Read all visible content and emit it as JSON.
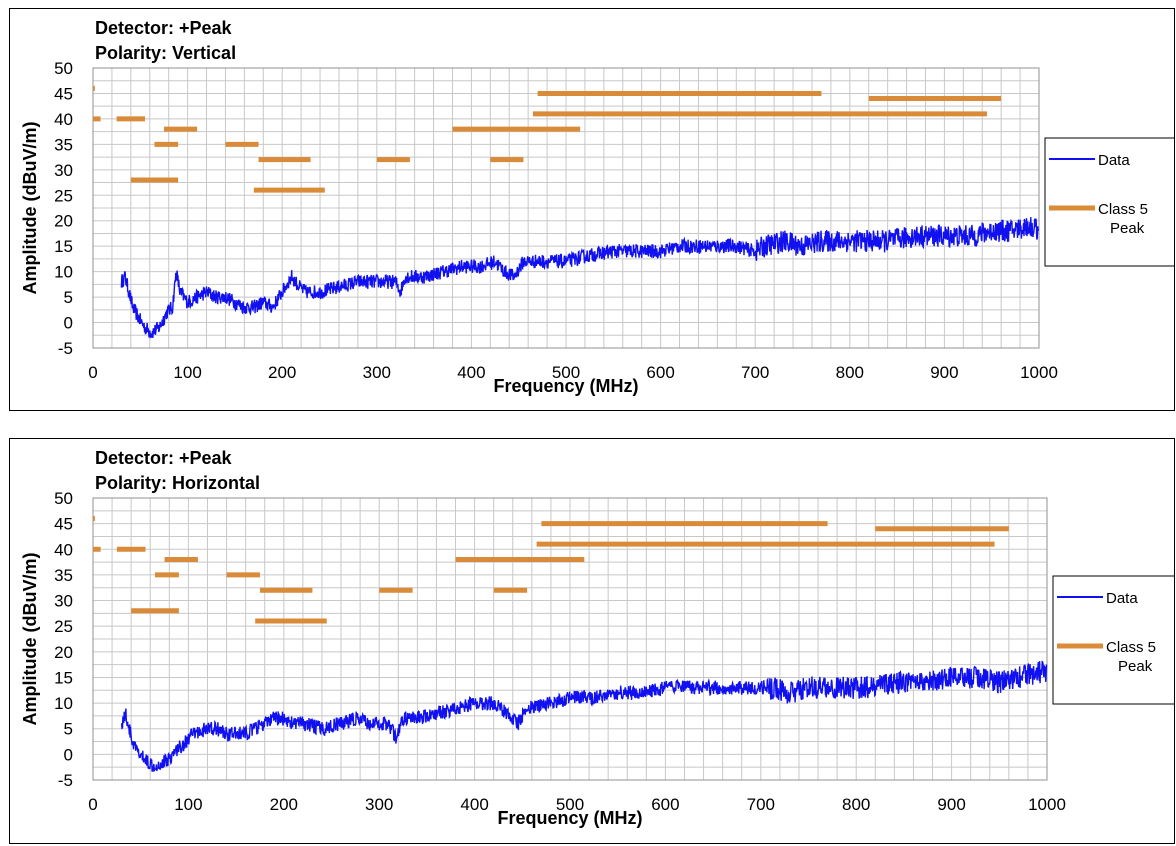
{
  "colors": {
    "data": "#1010f0",
    "limit": "#d98b3a",
    "grid": "#c8c8c8",
    "frame": "#000000"
  },
  "chart_data": [
    {
      "type": "line",
      "title": [
        "Detector: +Peak",
        "Polarity: Vertical"
      ],
      "xlabel": "Frequency (MHz)",
      "ylabel": "Amplitude (dBuV/m)",
      "xlim": [
        0,
        1000
      ],
      "ylim": [
        -5,
        50
      ],
      "x_ticks": [
        "0",
        "100",
        "200",
        "300",
        "400",
        "500",
        "600",
        "700",
        "800",
        "900",
        "1000"
      ],
      "y_ticks": [
        "-5",
        "0",
        "5",
        "10",
        "15",
        "20",
        "25",
        "30",
        "35",
        "40",
        "45",
        "50"
      ],
      "grid": true,
      "legend_position": "right",
      "series": [
        {
          "name": "Data",
          "color": "#1010f0",
          "points": [
            [
              30,
              8
            ],
            [
              34,
              9
            ],
            [
              38,
              6
            ],
            [
              42,
              3
            ],
            [
              48,
              1
            ],
            [
              55,
              -1
            ],
            [
              62,
              -2
            ],
            [
              70,
              -1
            ],
            [
              78,
              2
            ],
            [
              84,
              3
            ],
            [
              88,
              10
            ],
            [
              92,
              6
            ],
            [
              100,
              4
            ],
            [
              110,
              5
            ],
            [
              120,
              6
            ],
            [
              130,
              5
            ],
            [
              140,
              5
            ],
            [
              150,
              4
            ],
            [
              160,
              3
            ],
            [
              170,
              3
            ],
            [
              180,
              4
            ],
            [
              190,
              3
            ],
            [
              200,
              6
            ],
            [
              210,
              9
            ],
            [
              218,
              7
            ],
            [
              225,
              6
            ],
            [
              240,
              6
            ],
            [
              260,
              7
            ],
            [
              280,
              8
            ],
            [
              300,
              8
            ],
            [
              310,
              8
            ],
            [
              320,
              8
            ],
            [
              325,
              6
            ],
            [
              330,
              9
            ],
            [
              350,
              9
            ],
            [
              370,
              10
            ],
            [
              390,
              11
            ],
            [
              410,
              11
            ],
            [
              425,
              12
            ],
            [
              435,
              10
            ],
            [
              445,
              9
            ],
            [
              455,
              12
            ],
            [
              480,
              12
            ],
            [
              500,
              12
            ],
            [
              520,
              13
            ],
            [
              550,
              14
            ],
            [
              580,
              14
            ],
            [
              600,
              14
            ],
            [
              620,
              15
            ],
            [
              650,
              15
            ],
            [
              680,
              15
            ],
            [
              700,
              14
            ],
            [
              710,
              15
            ],
            [
              730,
              16
            ],
            [
              750,
              15
            ],
            [
              770,
              16
            ],
            [
              790,
              16
            ],
            [
              810,
              16
            ],
            [
              840,
              16
            ],
            [
              870,
              17
            ],
            [
              900,
              17
            ],
            [
              930,
              17
            ],
            [
              950,
              18
            ],
            [
              970,
              18
            ],
            [
              990,
              19
            ],
            [
              1000,
              18
            ]
          ]
        },
        {
          "name": "Class 5 Peak",
          "color": "#d98b3a",
          "segments": [
            [
              0,
              2,
              46
            ],
            [
              0,
              8,
              40
            ],
            [
              25,
              55,
              40
            ],
            [
              40,
              90,
              28
            ],
            [
              65,
              90,
              35
            ],
            [
              75,
              110,
              38
            ],
            [
              140,
              175,
              35
            ],
            [
              170,
              245,
              26
            ],
            [
              175,
              230,
              32
            ],
            [
              300,
              335,
              32
            ],
            [
              380,
              515,
              38
            ],
            [
              420,
              455,
              32
            ],
            [
              465,
              945,
              41
            ],
            [
              470,
              770,
              45
            ],
            [
              820,
              960,
              44
            ]
          ]
        }
      ]
    },
    {
      "type": "line",
      "title": [
        "Detector: +Peak",
        "Polarity: Horizontal"
      ],
      "xlabel": "Frequency (MHz)",
      "ylabel": "Amplitude (dBuV/m)",
      "xlim": [
        0,
        1000
      ],
      "ylim": [
        -5,
        50
      ],
      "x_ticks": [
        "0",
        "100",
        "200",
        "300",
        "400",
        "500",
        "600",
        "700",
        "800",
        "900",
        "1000"
      ],
      "y_ticks": [
        "-5",
        "0",
        "5",
        "10",
        "15",
        "20",
        "25",
        "30",
        "35",
        "40",
        "45",
        "50"
      ],
      "grid": true,
      "legend_position": "right",
      "series": [
        {
          "name": "Data",
          "color": "#1010f0",
          "points": [
            [
              30,
              6
            ],
            [
              34,
              8
            ],
            [
              38,
              5
            ],
            [
              42,
              2
            ],
            [
              48,
              0
            ],
            [
              55,
              -1
            ],
            [
              62,
              -2
            ],
            [
              70,
              -2
            ],
            [
              78,
              -1
            ],
            [
              84,
              0
            ],
            [
              88,
              1
            ],
            [
              95,
              2
            ],
            [
              105,
              4
            ],
            [
              120,
              5
            ],
            [
              130,
              5
            ],
            [
              140,
              4
            ],
            [
              150,
              4
            ],
            [
              160,
              4
            ],
            [
              170,
              5
            ],
            [
              180,
              6
            ],
            [
              190,
              7
            ],
            [
              200,
              7
            ],
            [
              210,
              6
            ],
            [
              220,
              6
            ],
            [
              240,
              5
            ],
            [
              260,
              6
            ],
            [
              275,
              7
            ],
            [
              290,
              6
            ],
            [
              300,
              6
            ],
            [
              310,
              6
            ],
            [
              318,
              3
            ],
            [
              325,
              7
            ],
            [
              340,
              7
            ],
            [
              360,
              8
            ],
            [
              380,
              9
            ],
            [
              400,
              10
            ],
            [
              420,
              10
            ],
            [
              435,
              8
            ],
            [
              445,
              6
            ],
            [
              455,
              9
            ],
            [
              480,
              10
            ],
            [
              500,
              11
            ],
            [
              520,
              11
            ],
            [
              550,
              12
            ],
            [
              580,
              12
            ],
            [
              600,
              13
            ],
            [
              620,
              13
            ],
            [
              650,
              13
            ],
            [
              680,
              13
            ],
            [
              700,
              13
            ],
            [
              710,
              13
            ],
            [
              730,
              12
            ],
            [
              750,
              13
            ],
            [
              770,
              13
            ],
            [
              790,
              13
            ],
            [
              810,
              13
            ],
            [
              840,
              14
            ],
            [
              870,
              14
            ],
            [
              900,
              15
            ],
            [
              930,
              15
            ],
            [
              950,
              14
            ],
            [
              970,
              15
            ],
            [
              990,
              16
            ],
            [
              1000,
              16
            ]
          ]
        },
        {
          "name": "Class 5 Peak",
          "color": "#d98b3a",
          "segments": [
            [
              0,
              2,
              46
            ],
            [
              0,
              8,
              40
            ],
            [
              25,
              55,
              40
            ],
            [
              40,
              90,
              28
            ],
            [
              65,
              90,
              35
            ],
            [
              75,
              110,
              38
            ],
            [
              140,
              175,
              35
            ],
            [
              170,
              245,
              26
            ],
            [
              175,
              230,
              32
            ],
            [
              300,
              335,
              32
            ],
            [
              380,
              515,
              38
            ],
            [
              420,
              455,
              32
            ],
            [
              465,
              945,
              41
            ],
            [
              470,
              770,
              45
            ],
            [
              820,
              960,
              44
            ]
          ]
        }
      ]
    }
  ]
}
